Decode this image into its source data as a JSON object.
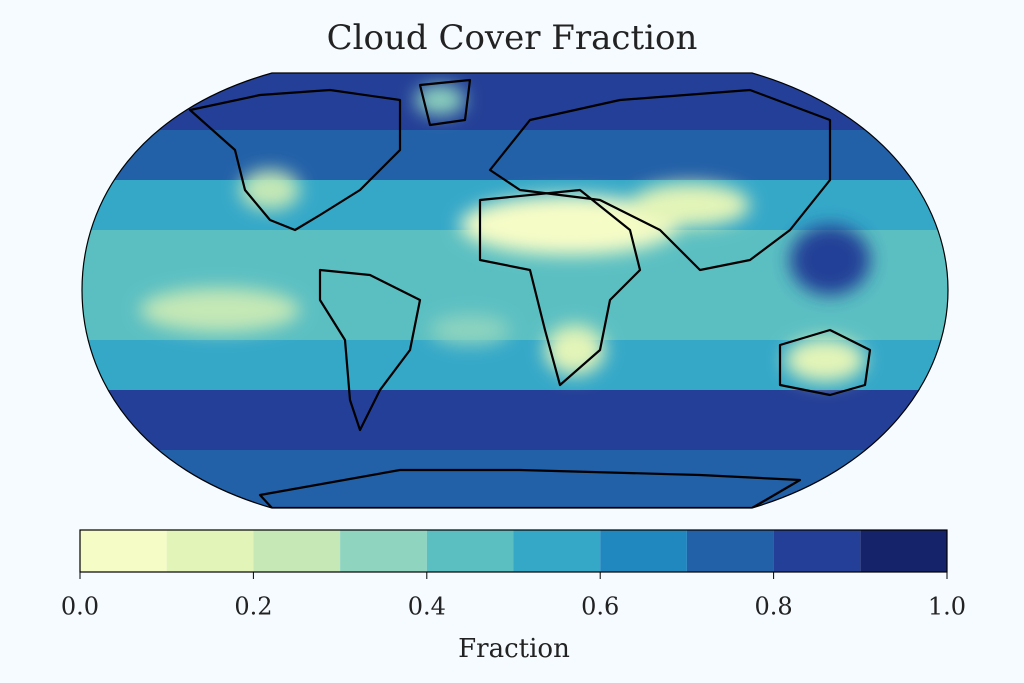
{
  "chart_data": {
    "type": "map",
    "title": "Cloud Cover Fraction",
    "colorbar": {
      "label": "Fraction",
      "levels": [
        0,
        0.1,
        0.2,
        0.3,
        0.4,
        0.5,
        0.6,
        0.7,
        0.8,
        0.9,
        1.0
      ],
      "colors": [
        "#f6fcc6",
        "#e3f4b8",
        "#c5e8b6",
        "#8ed4bf",
        "#5bbfc2",
        "#35a8c8",
        "#2087bf",
        "#2260a8",
        "#243f97",
        "#15236a"
      ],
      "lim": [
        0,
        1
      ],
      "ticks": [
        {
          "value": 0,
          "label": "0.0"
        },
        {
          "value": 0.2,
          "label": "0.2"
        },
        {
          "value": 0.4,
          "label": "0.4"
        },
        {
          "value": 0.6,
          "label": "0.6"
        },
        {
          "value": 0.8,
          "label": "0.8"
        },
        {
          "value": 1,
          "label": "1.0"
        }
      ]
    }
  }
}
